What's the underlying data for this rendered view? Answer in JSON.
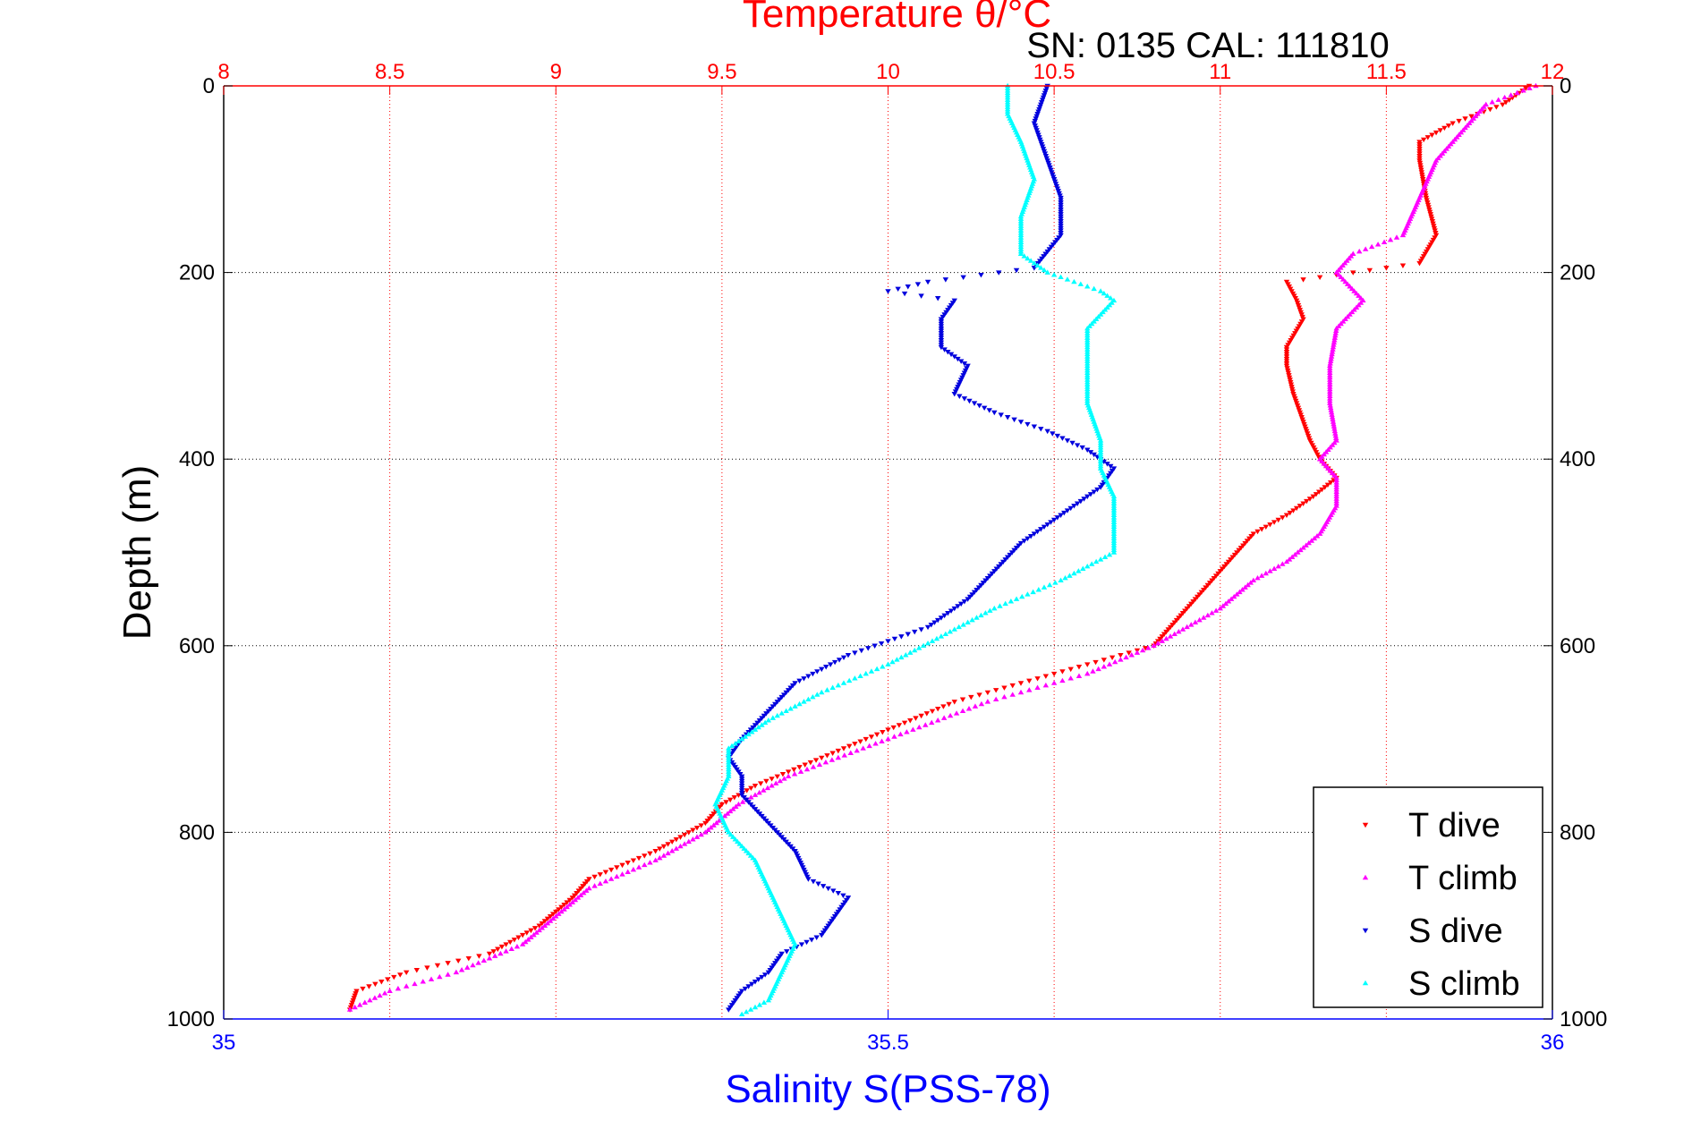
{
  "chart_data": {
    "type": "scatter",
    "title": "Temperature θ/°C",
    "subtitle": "SN: 0135  CAL: 111810",
    "xlabel_top": "Temperature θ/°C",
    "xlabel_bottom": "Salinity S(PSS-78)",
    "ylabel": "Depth (m)",
    "x_top_range": [
      8,
      12
    ],
    "x_top_ticks": [
      "8",
      "8.5",
      "9",
      "9.5",
      "10",
      "10.5",
      "11",
      "11.5",
      "12"
    ],
    "x_bottom_range": [
      35,
      36
    ],
    "x_bottom_ticks": [
      "35",
      "35.5",
      "36"
    ],
    "y_range": [
      0,
      1000
    ],
    "y_reversed": true,
    "y_ticks_left": [
      "0",
      "200",
      "400",
      "600",
      "800",
      "1000"
    ],
    "y_ticks_right": [
      "0",
      "200",
      "400",
      "600",
      "800",
      "1000"
    ],
    "grid": true,
    "legend_position": "bottom-right",
    "colors": {
      "t_axis": "#ff0000",
      "s_axis": "#0000ff",
      "t_dive": "#ff0000",
      "t_climb": "#ff00ff",
      "s_dive": "#0000dd",
      "s_climb": "#00ffff"
    },
    "series": [
      {
        "name": "T dive",
        "axis": "temperature",
        "marker": "down-triangle",
        "color": "#ff0000",
        "depth": [
          0,
          20,
          40,
          60,
          80,
          120,
          160,
          190,
          200,
          210,
          230,
          250,
          280,
          300,
          330,
          360,
          380,
          400,
          420,
          440,
          460,
          480,
          500,
          520,
          540,
          560,
          580,
          600,
          630,
          660,
          690,
          720,
          750,
          770,
          790,
          820,
          850,
          870,
          900,
          930,
          950,
          970,
          990
        ],
        "values": [
          11.93,
          11.85,
          11.7,
          11.6,
          11.6,
          11.62,
          11.65,
          11.6,
          11.4,
          11.2,
          11.23,
          11.25,
          11.2,
          11.2,
          11.22,
          11.25,
          11.27,
          11.3,
          11.35,
          11.28,
          11.2,
          11.1,
          11.05,
          11.0,
          10.95,
          10.9,
          10.85,
          10.8,
          10.5,
          10.2,
          10.0,
          9.8,
          9.6,
          9.5,
          9.45,
          9.3,
          9.1,
          9.05,
          8.95,
          8.8,
          8.55,
          8.4,
          8.38
        ]
      },
      {
        "name": "T climb",
        "axis": "temperature",
        "marker": "up-triangle",
        "color": "#ff00ff",
        "depth": [
          0,
          20,
          40,
          60,
          80,
          120,
          160,
          180,
          200,
          230,
          260,
          300,
          340,
          380,
          400,
          420,
          450,
          480,
          510,
          530,
          560,
          600,
          630,
          660,
          700,
          740,
          770,
          800,
          830,
          860,
          890,
          920,
          950,
          970,
          990
        ],
        "values": [
          11.95,
          11.8,
          11.75,
          11.7,
          11.65,
          11.6,
          11.55,
          11.4,
          11.35,
          11.43,
          11.35,
          11.33,
          11.33,
          11.35,
          11.3,
          11.35,
          11.35,
          11.3,
          11.2,
          11.1,
          11.0,
          10.8,
          10.6,
          10.3,
          10.0,
          9.7,
          9.55,
          9.45,
          9.3,
          9.1,
          9.0,
          8.9,
          8.7,
          8.5,
          8.38
        ]
      },
      {
        "name": "S dive",
        "axis": "salinity",
        "marker": "down-triangle",
        "color": "#0000dd",
        "depth": [
          0,
          40,
          80,
          120,
          160,
          195,
          210,
          220,
          230,
          250,
          280,
          300,
          330,
          350,
          370,
          390,
          410,
          430,
          460,
          490,
          520,
          550,
          580,
          610,
          640,
          670,
          700,
          720,
          740,
          760,
          790,
          820,
          850,
          870,
          890,
          910,
          930,
          950,
          970,
          990
        ],
        "values": [
          35.62,
          35.61,
          35.62,
          35.63,
          35.63,
          35.61,
          35.53,
          35.5,
          35.55,
          35.54,
          35.54,
          35.56,
          35.55,
          35.58,
          35.62,
          35.65,
          35.67,
          35.66,
          35.63,
          35.6,
          35.58,
          35.56,
          35.53,
          35.47,
          35.43,
          35.41,
          35.39,
          35.38,
          35.39,
          35.39,
          35.41,
          35.43,
          35.44,
          35.47,
          35.46,
          35.45,
          35.42,
          35.41,
          35.39,
          35.38
        ]
      },
      {
        "name": "S climb",
        "axis": "salinity",
        "marker": "up-triangle",
        "color": "#00ffff",
        "depth": [
          0,
          30,
          60,
          100,
          140,
          180,
          200,
          220,
          230,
          260,
          300,
          340,
          380,
          410,
          440,
          470,
          500,
          530,
          560,
          590,
          620,
          650,
          680,
          710,
          740,
          770,
          800,
          830,
          860,
          890,
          920,
          950,
          980,
          995
        ],
        "values": [
          35.59,
          35.59,
          35.6,
          35.61,
          35.6,
          35.6,
          35.62,
          35.66,
          35.67,
          35.65,
          35.65,
          35.65,
          35.66,
          35.66,
          35.67,
          35.67,
          35.67,
          35.63,
          35.58,
          35.54,
          35.5,
          35.45,
          35.41,
          35.38,
          35.38,
          35.37,
          35.38,
          35.4,
          35.41,
          35.42,
          35.43,
          35.42,
          35.41,
          35.39
        ]
      }
    ]
  }
}
